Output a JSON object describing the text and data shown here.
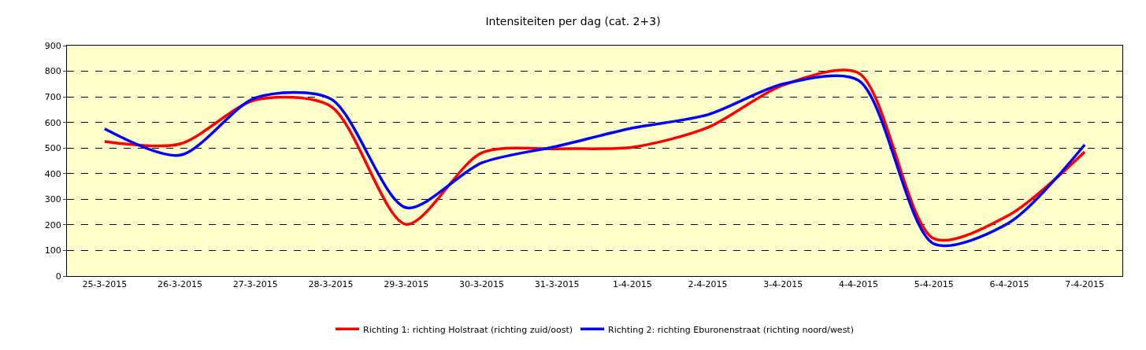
{
  "chart_data": {
    "type": "line",
    "title": "Intensiteiten per dag (cat. 2+3)",
    "categories": [
      "25-3-2015",
      "26-3-2015",
      "27-3-2015",
      "28-3-2015",
      "29-3-2015",
      "30-3-2015",
      "31-3-2015",
      "1-4-2015",
      "2-4-2015",
      "3-4-2015",
      "4-4-2015",
      "5-4-2015",
      "6-4-2015",
      "7-4-2015"
    ],
    "series": [
      {
        "name": "Richting 1: richting Holstraat (richting zuid/oost)",
        "color": "#ff0000",
        "values": [
          525,
          516,
          688,
          663,
          202,
          481,
          497,
          503,
          580,
          746,
          793,
          146,
          239,
          485
        ]
      },
      {
        "name": "Richting 2: richting Eburonenstraat (richting noord/west)",
        "color": "#0000ff",
        "values": [
          575,
          472,
          696,
          692,
          267,
          442,
          507,
          578,
          630,
          750,
          764,
          126,
          209,
          513
        ]
      }
    ],
    "ylim": [
      0,
      900
    ],
    "yticks": [
      0,
      100,
      200,
      300,
      400,
      500,
      600,
      700,
      800,
      900
    ],
    "grid": "y",
    "legend": "bottom",
    "marker": "none",
    "line_style": "solid"
  }
}
